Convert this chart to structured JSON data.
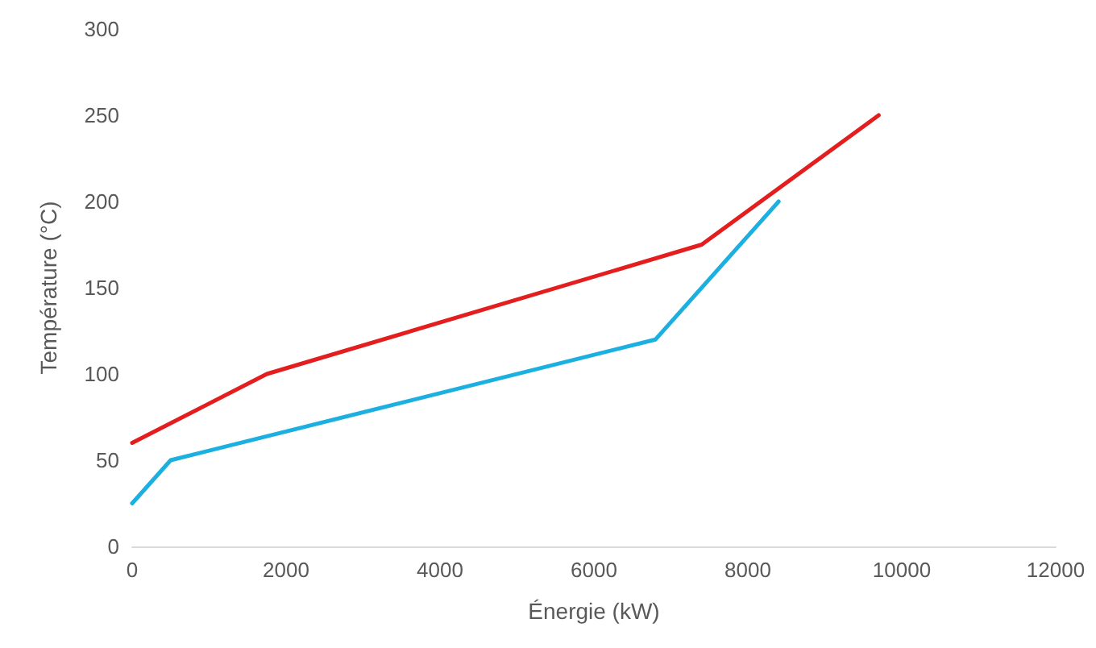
{
  "chart_data": {
    "type": "line",
    "xlabel": "Énergie (kW)",
    "ylabel": "Température (°C)",
    "xlim": [
      0,
      12000
    ],
    "xticks": [
      0,
      2000,
      4000,
      6000,
      8000,
      10000,
      12000
    ],
    "ylim": [
      0,
      300
    ],
    "yticks": [
      0,
      50,
      100,
      150,
      200,
      250,
      300
    ],
    "grid": false,
    "marker": "none",
    "line_style": "solid",
    "series": [
      {
        "color": "#e41e1e",
        "x": [
          0,
          1750,
          7400,
          9700
        ],
        "values": [
          60,
          100,
          175,
          250
        ]
      },
      {
        "color": "#1cb0e0",
        "x": [
          0,
          500,
          6800,
          8400
        ],
        "values": [
          25,
          50,
          120,
          200
        ]
      }
    ]
  }
}
